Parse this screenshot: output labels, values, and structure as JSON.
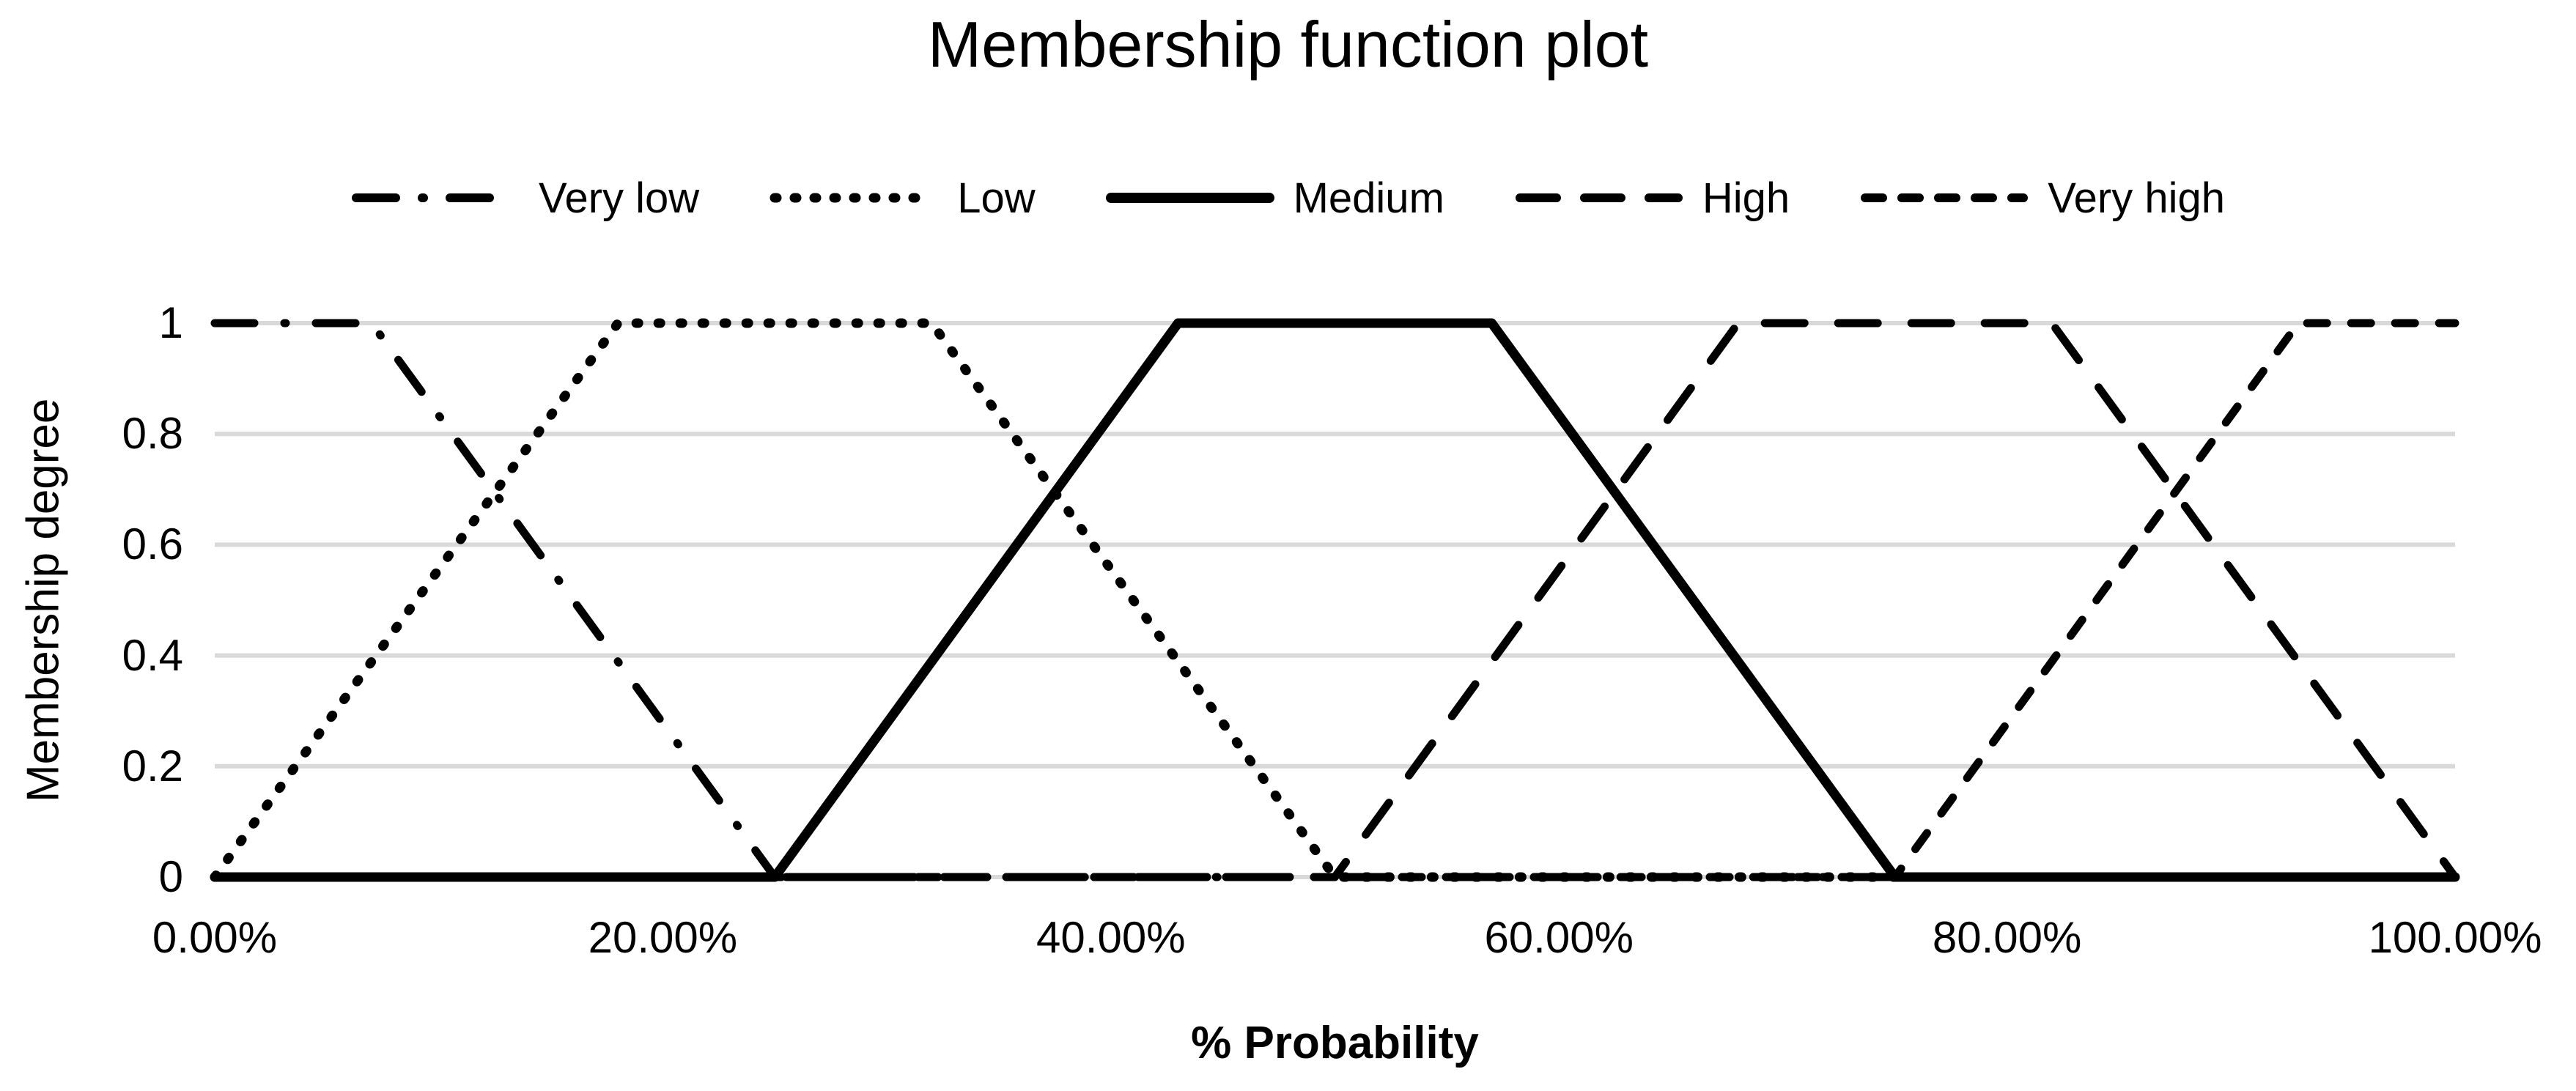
{
  "chart": {
    "title": "Membership function plot",
    "x_axis": {
      "title": "% Probability",
      "ticks": [
        "0.00%",
        "20.00%",
        "40.00%",
        "60.00%",
        "80.00%",
        "100.00%"
      ],
      "tick_values": [
        0,
        20,
        40,
        60,
        80,
        100
      ]
    },
    "y_axis": {
      "title": "Membership degree",
      "ticks": [
        "1",
        "0.8",
        "0.6",
        "0.4",
        "0.2",
        "0"
      ],
      "tick_values": [
        1,
        0.8,
        0.6,
        0.4,
        0.2,
        0
      ]
    },
    "colors": {
      "line": "#000000",
      "gridline": "#d9d9d9",
      "text": "#000000",
      "background": "#ffffff"
    }
  },
  "chart_data": {
    "type": "line",
    "title": "Membership function plot",
    "xlabel": "% Probability",
    "ylabel": "Membership degree",
    "xlim": [
      0,
      100
    ],
    "ylim": [
      0,
      1
    ],
    "x_unit": "percent",
    "grid": "horizontal-only",
    "legend_position": "top",
    "series": [
      {
        "name": "Very low",
        "line_style": "dash-dot",
        "color": "#000000",
        "points": [
          [
            0,
            1
          ],
          [
            7,
            1
          ],
          [
            25,
            0
          ],
          [
            100,
            0
          ]
        ]
      },
      {
        "name": "Low",
        "line_style": "dotted",
        "color": "#000000",
        "points": [
          [
            0,
            0
          ],
          [
            18,
            1
          ],
          [
            32,
            1
          ],
          [
            50,
            0
          ],
          [
            100,
            0
          ]
        ]
      },
      {
        "name": "Medium",
        "line_style": "solid",
        "color": "#000000",
        "points": [
          [
            0,
            0
          ],
          [
            25,
            0
          ],
          [
            43,
            1
          ],
          [
            57,
            1
          ],
          [
            75,
            0
          ],
          [
            100,
            0
          ]
        ]
      },
      {
        "name": "High",
        "line_style": "long-dash",
        "color": "#000000",
        "points": [
          [
            0,
            0
          ],
          [
            50,
            0
          ],
          [
            68,
            1
          ],
          [
            82,
            1
          ],
          [
            100,
            0
          ]
        ]
      },
      {
        "name": "Very high",
        "line_style": "short-dash",
        "color": "#000000",
        "points": [
          [
            0,
            0
          ],
          [
            75,
            0
          ],
          [
            93,
            1
          ],
          [
            100,
            1
          ]
        ]
      }
    ]
  }
}
